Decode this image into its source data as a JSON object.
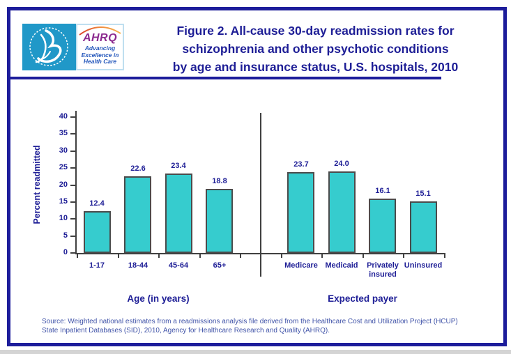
{
  "page": {
    "header": {
      "logo": {
        "org_abbr": "AHRQ",
        "tagline_lines": [
          "Advancing",
          "Excellence in",
          "Health Care"
        ]
      },
      "title_lines": [
        "Figure 2. All-cause 30-day readmission rates for",
        "schizophrenia and other psychotic conditions",
        "by age and insurance status, U.S. hospitals, 2010"
      ]
    },
    "source_lines": [
      "Source: Weighted national estimates from a readmissions analysis file derived from the Healthcare Cost and Utilization Project (HCUP)",
      "State Inpatient Databases (SID), 2010, Agency for Healthcare Research and Quality (AHRQ)."
    ]
  },
  "chart_data": {
    "type": "bar",
    "title": "Figure 2. All-cause 30-day readmission rates for schizophrenia and other psychotic conditions by age and insurance status, U.S. hospitals, 2010",
    "ylabel": "Percent readmitted",
    "xlabel": "",
    "ylim": [
      0,
      40
    ],
    "ytick_step": 5,
    "yticks": [
      0,
      5,
      10,
      15,
      20,
      25,
      30,
      35,
      40
    ],
    "grid": false,
    "legend": "none",
    "bar_color": "#36ccce",
    "bar_border_color": "#4b4b4b",
    "label_color": "#1e1e96",
    "groups": [
      {
        "label": "Age (in years)",
        "categories": [
          "1-17",
          "18-44",
          "45-64",
          "65+"
        ],
        "values": [
          12.4,
          22.6,
          23.4,
          18.8
        ]
      },
      {
        "label": "Expected payer",
        "categories": [
          "Medicare",
          "Medicaid",
          "Privately insured",
          "Uninsured"
        ],
        "values": [
          23.7,
          24.0,
          16.1,
          15.1
        ]
      }
    ]
  }
}
